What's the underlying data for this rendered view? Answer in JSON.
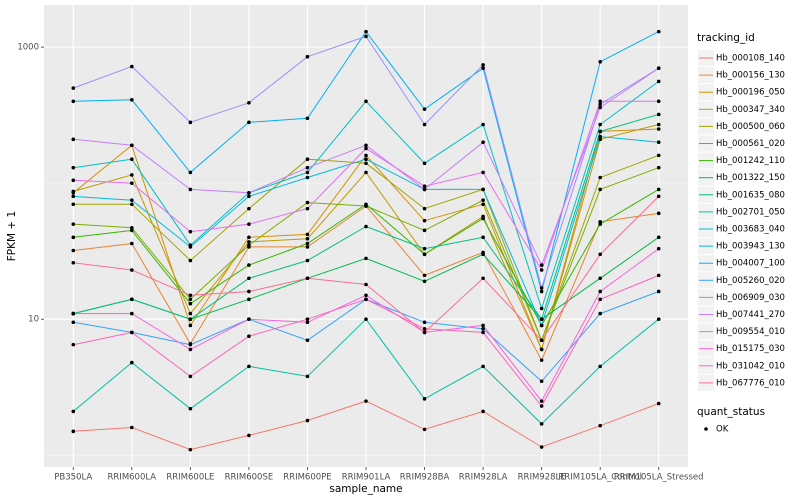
{
  "chart_data": {
    "type": "line",
    "y_scale": "log10",
    "grid": true,
    "x_label": "sample_name",
    "y_label": "FPKM + 1",
    "legend_title": "tracking_id",
    "shape_legend": {
      "title": "quant_status",
      "label": "OK"
    },
    "categories": [
      "PB350LA",
      "RRIM600LA",
      "RRIM600LE",
      "RRIM600SE",
      "RRIM600PE",
      "RRIM901LA",
      "RRIM928BA",
      "RRIM928LA",
      "RRIM928LE",
      "RRIM105LA_Control",
      "RRIM105LA_Stressed"
    ],
    "ylim": [
      0.82,
      2040
    ],
    "yticks": [
      10,
      1000
    ],
    "y_minor_grid": [
      1,
      100
    ],
    "series": [
      {
        "name": "Hb_000108_140",
        "color": "#F8766D",
        "values": [
          1.5,
          1.6,
          1.1,
          1.4,
          1.8,
          2.5,
          1.55,
          2.1,
          1.15,
          1.65,
          2.4
        ]
      },
      {
        "name": "Hb_000156_130",
        "color": "#EA8331",
        "values": [
          32,
          36,
          6.6,
          34,
          34,
          68,
          21,
          31,
          5,
          52,
          60
        ]
      },
      {
        "name": "Hb_000196_050",
        "color": "#D89000",
        "values": [
          85,
          190,
          9,
          40,
          42,
          160,
          53,
          70,
          6,
          240,
          250
        ]
      },
      {
        "name": "Hb_000347_340",
        "color": "#C09B00",
        "values": [
          87,
          115,
          11,
          37,
          39,
          120,
          30,
          57,
          6,
          210,
          270
        ]
      },
      {
        "name": "Hb_000500_060",
        "color": "#A3A500",
        "values": [
          70,
          70,
          27,
          65,
          150,
          140,
          65,
          90,
          7,
          110,
          160
        ]
      },
      {
        "name": "Hb_000561_020",
        "color": "#7CAE00",
        "values": [
          50,
          47,
          14,
          35,
          72,
          68,
          45,
          75,
          7,
          90,
          130
        ]
      },
      {
        "name": "Hb_001242_110",
        "color": "#39B600",
        "values": [
          40,
          45,
          13,
          25,
          36,
          70,
          30,
          55,
          9,
          50,
          90
        ]
      },
      {
        "name": "Hb_001322_150",
        "color": "#00BB4E",
        "values": [
          11,
          14,
          10,
          14,
          20,
          28,
          19,
          30,
          10,
          20,
          40
        ]
      },
      {
        "name": "Hb_001635_080",
        "color": "#00BF7D",
        "values": [
          11,
          14,
          10,
          20,
          27,
          48,
          33,
          40,
          10,
          240,
          320
        ]
      },
      {
        "name": "Hb_002701_050",
        "color": "#00C1A3",
        "values": [
          2.1,
          4.8,
          2.2,
          4.5,
          3.8,
          10,
          2.6,
          4.5,
          1.7,
          4.5,
          10
        ]
      },
      {
        "name": "Hb_003683_040",
        "color": "#00BFC4",
        "values": [
          130,
          150,
          35,
          85,
          120,
          400,
          140,
          270,
          12,
          270,
          560
        ]
      },
      {
        "name": "Hb_003943_130",
        "color": "#00BAE0",
        "values": [
          80,
          75,
          34,
          80,
          110,
          150,
          90,
          90,
          9,
          220,
          200
        ]
      },
      {
        "name": "Hb_004007_100",
        "color": "#00B0F6",
        "values": [
          400,
          410,
          120,
          280,
          300,
          1300,
          350,
          700,
          16,
          780,
          1300
        ]
      },
      {
        "name": "Hb_005260_020",
        "color": "#35A2FF",
        "values": [
          9.5,
          8,
          6.5,
          10,
          7,
          14,
          9.5,
          8.5,
          3.5,
          11,
          16
        ]
      },
      {
        "name": "Hb_006909_030",
        "color": "#9590FF",
        "values": [
          500,
          720,
          280,
          390,
          850,
          1200,
          270,
          740,
          17,
          380,
          700
        ]
      },
      {
        "name": "Hb_007441_270",
        "color": "#C77CFF",
        "values": [
          210,
          190,
          90,
          85,
          130,
          190,
          90,
          200,
          25,
          360,
          700
        ]
      },
      {
        "name": "Hb_009554_010",
        "color": "#E76BF3",
        "values": [
          105,
          100,
          44,
          50,
          65,
          180,
          95,
          120,
          23,
          400,
          400
        ]
      },
      {
        "name": "Hb_015175_030",
        "color": "#FA62DB",
        "values": [
          11,
          11,
          6,
          10,
          9.5,
          15,
          8,
          9,
          2.5,
          16,
          33
        ]
      },
      {
        "name": "Hb_031042_010",
        "color": "#FF62BC",
        "values": [
          6.5,
          8,
          3.8,
          7.5,
          10,
          14,
          8.5,
          8,
          2.3,
          14,
          21
        ]
      },
      {
        "name": "Hb_067776_010",
        "color": "#FF6C91",
        "values": [
          26,
          23,
          15,
          16,
          20,
          18,
          8,
          20,
          7,
          30,
          80
        ]
      }
    ]
  }
}
